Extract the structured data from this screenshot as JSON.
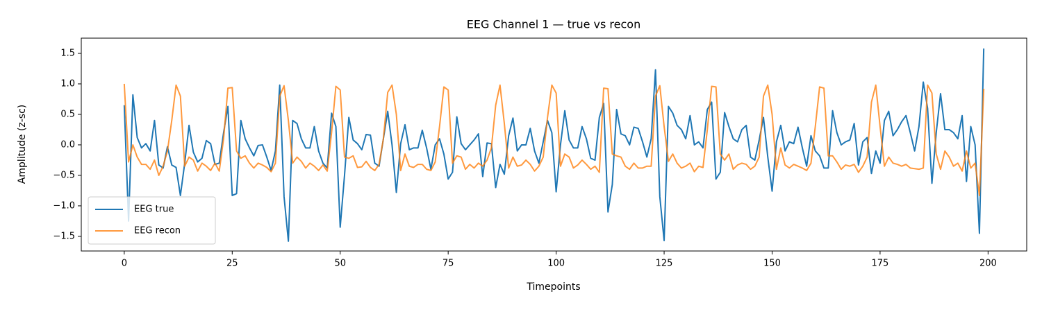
{
  "chart_data": {
    "type": "line",
    "title": "EEG Channel 1 — true vs recon",
    "xlabel": "Timepoints",
    "ylabel": "Amplitude (z-sc)",
    "xlim": [
      -9.95,
      208.95
    ],
    "ylim": [
      -1.74,
      1.75
    ],
    "xticks": [
      0,
      25,
      50,
      75,
      100,
      125,
      150,
      175,
      200
    ],
    "yticks": [
      {
        "value": -1.5,
        "label": "−1.5"
      },
      {
        "value": -1.0,
        "label": "−1.0"
      },
      {
        "value": -0.5,
        "label": "−0.5"
      },
      {
        "value": 0.0,
        "label": "0.0"
      },
      0.5,
      {
        "value": 1.0,
        "label": "1.0"
      },
      1.5
    ],
    "legend": "lower left",
    "x": [
      0,
      1,
      2,
      3,
      4,
      5,
      6,
      7,
      8,
      9,
      10,
      11,
      12,
      13,
      14,
      15,
      16,
      17,
      18,
      19,
      20,
      21,
      22,
      23,
      24,
      25,
      26,
      27,
      28,
      29,
      30,
      31,
      32,
      33,
      34,
      35,
      36,
      37,
      38,
      39,
      40,
      41,
      42,
      43,
      44,
      45,
      46,
      47,
      48,
      49,
      50,
      51,
      52,
      53,
      54,
      55,
      56,
      57,
      58,
      59,
      60,
      61,
      62,
      63,
      64,
      65,
      66,
      67,
      68,
      69,
      70,
      71,
      72,
      73,
      74,
      75,
      76,
      77,
      78,
      79,
      80,
      81,
      82,
      83,
      84,
      85,
      86,
      87,
      88,
      89,
      90,
      91,
      92,
      93,
      94,
      95,
      96,
      97,
      98,
      99,
      100,
      101,
      102,
      103,
      104,
      105,
      106,
      107,
      108,
      109,
      110,
      111,
      112,
      113,
      114,
      115,
      116,
      117,
      118,
      119,
      120,
      121,
      122,
      123,
      124,
      125,
      126,
      127,
      128,
      129,
      130,
      131,
      132,
      133,
      134,
      135,
      136,
      137,
      138,
      139,
      140,
      141,
      142,
      143,
      144,
      145,
      146,
      147,
      148,
      149,
      150,
      151,
      152,
      153,
      154,
      155,
      156,
      157,
      158,
      159,
      160,
      161,
      162,
      163,
      164,
      165,
      166,
      167,
      168,
      169,
      170,
      171,
      172,
      173,
      174,
      175,
      176,
      177,
      178,
      179,
      180,
      181,
      182,
      183,
      184,
      185,
      186,
      187,
      188,
      189,
      190,
      191,
      192,
      193,
      194,
      195,
      196,
      197,
      198,
      199
    ],
    "series": [
      {
        "name": "EEG true",
        "color": "#1f77b4",
        "values": [
          0.65,
          -1.25,
          0.82,
          0.12,
          -0.05,
          0.02,
          -0.1,
          0.4,
          -0.33,
          -0.38,
          -0.03,
          -0.33,
          -0.37,
          -0.83,
          -0.3,
          0.32,
          -0.12,
          -0.28,
          -0.22,
          0.07,
          0.02,
          -0.32,
          -0.3,
          0.2,
          0.63,
          -0.83,
          -0.8,
          0.4,
          0.1,
          -0.05,
          -0.18,
          -0.01,
          0.0,
          -0.2,
          -0.42,
          -0.1,
          0.98,
          -0.85,
          -1.58,
          0.4,
          0.35,
          0.1,
          -0.05,
          -0.05,
          0.3,
          -0.1,
          -0.3,
          -0.38,
          0.52,
          0.3,
          -1.35,
          -0.5,
          0.45,
          0.08,
          0.02,
          -0.08,
          0.17,
          0.16,
          -0.3,
          -0.35,
          0.1,
          0.55,
          0.0,
          -0.78,
          0.02,
          0.33,
          -0.08,
          -0.05,
          -0.05,
          0.24,
          -0.05,
          -0.4,
          0.0,
          0.1,
          -0.15,
          -0.56,
          -0.45,
          0.46,
          0.02,
          -0.08,
          0.0,
          0.08,
          0.18,
          -0.52,
          0.03,
          0.02,
          -0.7,
          -0.32,
          -0.48,
          0.15,
          0.44,
          -0.1,
          0.0,
          0.0,
          0.27,
          -0.1,
          -0.3,
          0.05,
          0.4,
          0.2,
          -0.77,
          0.0,
          0.56,
          0.08,
          -0.05,
          -0.05,
          0.3,
          0.1,
          -0.22,
          -0.25,
          0.45,
          0.68,
          -1.1,
          -0.65,
          0.58,
          0.18,
          0.15,
          0.0,
          0.29,
          0.27,
          0.05,
          -0.2,
          0.1,
          1.23,
          -0.85,
          -1.57,
          0.63,
          0.52,
          0.32,
          0.25,
          0.1,
          0.48,
          0.0,
          0.05,
          -0.05,
          0.58,
          0.7,
          -0.56,
          -0.45,
          0.53,
          0.3,
          0.1,
          0.05,
          0.25,
          0.32,
          -0.2,
          -0.25,
          0.08,
          0.45,
          -0.2,
          -0.76,
          0.05,
          0.32,
          -0.1,
          0.05,
          0.02,
          0.29,
          -0.05,
          -0.35,
          0.15,
          -0.1,
          -0.18,
          -0.38,
          -0.38,
          0.56,
          0.2,
          0.0,
          0.05,
          0.08,
          0.35,
          -0.33,
          0.05,
          0.12,
          -0.47,
          -0.1,
          -0.3,
          0.4,
          0.55,
          0.15,
          0.25,
          0.38,
          0.48,
          0.2,
          -0.1,
          0.3,
          1.03,
          0.6,
          -0.63,
          0.2,
          0.84,
          0.25,
          0.25,
          0.2,
          0.1,
          0.48,
          -0.6,
          0.3,
          0.0,
          -1.45,
          1.58
        ]
      },
      {
        "name": "EEG recon",
        "color": "#ff7f0e",
        "values": [
          1.0,
          -0.28,
          0.0,
          -0.2,
          -0.32,
          -0.32,
          -0.4,
          -0.25,
          -0.5,
          -0.35,
          -0.1,
          0.4,
          0.98,
          0.8,
          -0.35,
          -0.2,
          -0.25,
          -0.43,
          -0.3,
          -0.35,
          -0.42,
          -0.3,
          -0.43,
          0.1,
          0.93,
          0.94,
          -0.1,
          -0.22,
          -0.18,
          -0.3,
          -0.38,
          -0.3,
          -0.33,
          -0.37,
          -0.44,
          -0.3,
          0.8,
          0.97,
          0.4,
          -0.3,
          -0.2,
          -0.27,
          -0.38,
          -0.3,
          -0.35,
          -0.42,
          -0.33,
          -0.43,
          0.2,
          0.96,
          0.9,
          -0.2,
          -0.22,
          -0.18,
          -0.37,
          -0.36,
          -0.27,
          -0.37,
          -0.42,
          -0.32,
          0.1,
          0.86,
          0.98,
          0.5,
          -0.42,
          -0.15,
          -0.35,
          -0.37,
          -0.32,
          -0.32,
          -0.4,
          -0.42,
          -0.28,
          0.3,
          0.95,
          0.9,
          -0.3,
          -0.18,
          -0.2,
          -0.4,
          -0.32,
          -0.38,
          -0.3,
          -0.35,
          -0.25,
          -0.05,
          0.65,
          0.98,
          0.35,
          -0.38,
          -0.2,
          -0.35,
          -0.33,
          -0.25,
          -0.32,
          -0.43,
          -0.35,
          -0.2,
          0.45,
          0.98,
          0.85,
          -0.35,
          -0.15,
          -0.2,
          -0.38,
          -0.33,
          -0.25,
          -0.32,
          -0.4,
          -0.35,
          -0.45,
          0.93,
          0.92,
          -0.15,
          -0.18,
          -0.2,
          -0.35,
          -0.4,
          -0.3,
          -0.38,
          -0.38,
          -0.35,
          -0.35,
          0.8,
          0.97,
          0.3,
          -0.27,
          -0.15,
          -0.3,
          -0.38,
          -0.35,
          -0.3,
          -0.44,
          -0.35,
          -0.37,
          0.25,
          0.96,
          0.95,
          -0.15,
          -0.25,
          -0.15,
          -0.4,
          -0.33,
          -0.3,
          -0.32,
          -0.4,
          -0.35,
          -0.2,
          0.8,
          0.98,
          0.5,
          -0.4,
          -0.05,
          -0.33,
          -0.38,
          -0.32,
          -0.35,
          -0.38,
          -0.42,
          -0.3,
          0.3,
          0.95,
          0.93,
          -0.18,
          -0.18,
          -0.28,
          -0.4,
          -0.33,
          -0.35,
          -0.32,
          -0.45,
          -0.35,
          -0.2,
          0.7,
          0.98,
          0.3,
          -0.35,
          -0.2,
          -0.3,
          -0.32,
          -0.35,
          -0.32,
          -0.38,
          -0.39,
          -0.4,
          -0.38,
          0.98,
          0.85,
          -0.15,
          -0.4,
          -0.1,
          -0.2,
          -0.35,
          -0.3,
          -0.43,
          -0.1,
          -0.38,
          -0.3,
          -0.83,
          0.92
        ]
      }
    ]
  }
}
